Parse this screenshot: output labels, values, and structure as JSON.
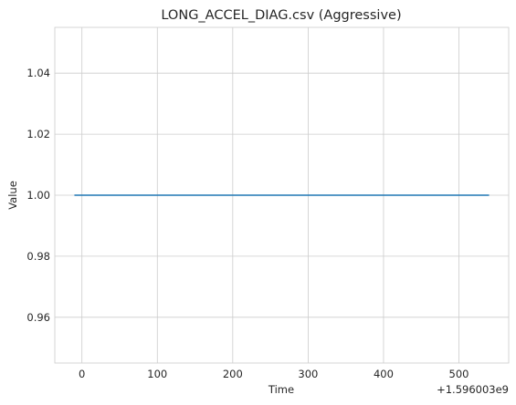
{
  "chart_data": {
    "type": "line",
    "title": "LONG_ACCEL_DIAG.csv (Aggressive)",
    "xlabel": "Time",
    "ylabel": "Value",
    "x_offset_label": "+1.596003e9",
    "xlim": [
      -36,
      566
    ],
    "ylim": [
      0.945,
      1.055
    ],
    "xticks": [
      0,
      100,
      200,
      300,
      400,
      500
    ],
    "yticks": [
      0.96,
      0.98,
      1.0,
      1.02,
      1.04
    ],
    "ytick_labels": [
      "0.96",
      "0.98",
      "1.00",
      "1.02",
      "1.04"
    ],
    "grid": true,
    "series": [
      {
        "color": "#1f77b4",
        "x": [
          -10,
          540
        ],
        "y": [
          1.0,
          1.0
        ]
      }
    ]
  }
}
